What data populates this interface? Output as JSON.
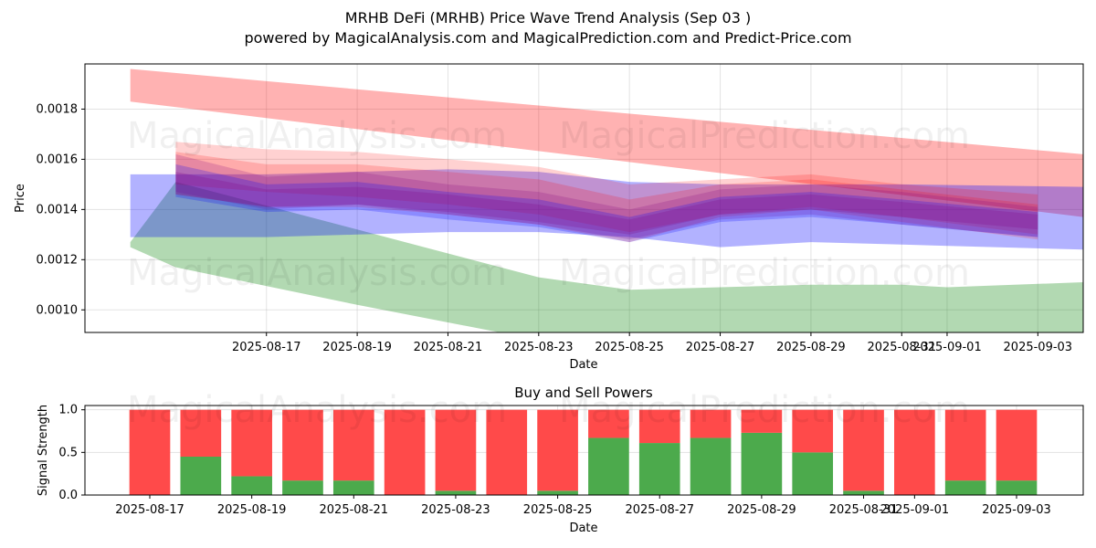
{
  "figure": {
    "title": "MRHB DeFi (MRHB) Price Wave Trend Analysis (Sep 03 )",
    "subtitle": "powered by MagicalAnalysis.com and MagicalPrediction.com and Predict-Price.com",
    "watermarks": [
      "MagicalAnalysis.com",
      "MagicalPrediction.com"
    ]
  },
  "chart_data": [
    {
      "type": "area",
      "title": "",
      "xlabel": "Date",
      "ylabel": "Price",
      "xlim": [
        "2025-08-13",
        "2025-09-04"
      ],
      "ylim": [
        0.00091,
        0.00198
      ],
      "x_ticks": [
        "2025-08-17",
        "2025-08-19",
        "2025-08-21",
        "2025-08-23",
        "2025-08-25",
        "2025-08-27",
        "2025-08-29",
        "2025-08-31",
        "2025-09-01",
        "2025-09-03"
      ],
      "y_ticks": [
        "0.0010",
        "0.0012",
        "0.0014",
        "0.0016",
        "0.0018"
      ],
      "grid": true,
      "colors": {
        "red": "#ff0000",
        "green": "#008000",
        "blue": "#0000ff",
        "purple": "#800080"
      },
      "bands": [
        {
          "color": "red",
          "opacity": 0.3,
          "x": [
            "2025-08-14",
            "2025-09-04"
          ],
          "upper": [
            0.00196,
            0.00162
          ],
          "lower": [
            0.00183,
            0.00137
          ]
        },
        {
          "color": "green",
          "opacity": 0.3,
          "x": [
            "2025-08-14",
            "2025-08-15",
            "2025-08-19",
            "2025-08-23",
            "2025-08-25",
            "2025-08-27",
            "2025-08-29",
            "2025-08-31",
            "2025-09-01",
            "2025-09-04"
          ],
          "upper": [
            0.00127,
            0.00151,
            0.00132,
            0.00113,
            0.00108,
            0.00109,
            0.0011,
            0.0011,
            0.00109,
            0.00111
          ],
          "lower": [
            0.00125,
            0.00117,
            0.00102,
            0.00088,
            0.00085,
            0.00085,
            0.00085,
            0.00085,
            0.00085,
            0.00085
          ]
        },
        {
          "color": "blue",
          "opacity": 0.3,
          "x": [
            "2025-08-14",
            "2025-08-17",
            "2025-08-19",
            "2025-08-21",
            "2025-08-23",
            "2025-08-25",
            "2025-08-27",
            "2025-08-29",
            "2025-08-31",
            "2025-09-04"
          ],
          "upper": [
            0.00154,
            0.00154,
            0.00155,
            0.00156,
            0.00155,
            0.00151,
            0.0015,
            0.0015,
            0.0015,
            0.00149
          ],
          "lower": [
            0.00129,
            0.00129,
            0.0013,
            0.00131,
            0.00131,
            0.00129,
            0.00125,
            0.00127,
            0.00126,
            0.00124
          ]
        },
        {
          "color": "red",
          "opacity": 0.18,
          "x": [
            "2025-08-15",
            "2025-08-17",
            "2025-08-19",
            "2025-08-21",
            "2025-08-23",
            "2025-08-25",
            "2025-08-27",
            "2025-08-29",
            "2025-08-31",
            "2025-09-03"
          ],
          "upper": [
            0.00167,
            0.00164,
            0.00163,
            0.0016,
            0.00157,
            0.0015,
            0.00152,
            0.00154,
            0.0015,
            0.00146
          ],
          "lower": [
            0.0015,
            0.00147,
            0.00145,
            0.00142,
            0.00138,
            0.00131,
            0.00138,
            0.00141,
            0.00137,
            0.0013
          ]
        },
        {
          "color": "red",
          "opacity": 0.18,
          "x": [
            "2025-08-15",
            "2025-08-17",
            "2025-08-19",
            "2025-08-21",
            "2025-08-23",
            "2025-08-25",
            "2025-08-27",
            "2025-08-29",
            "2025-08-31",
            "2025-09-03"
          ],
          "upper": [
            0.00163,
            0.00158,
            0.00158,
            0.00155,
            0.00152,
            0.00144,
            0.0015,
            0.00152,
            0.00148,
            0.00142
          ],
          "lower": [
            0.00146,
            0.00141,
            0.00141,
            0.00138,
            0.00134,
            0.00127,
            0.00137,
            0.0014,
            0.00135,
            0.00128
          ]
        },
        {
          "color": "purple",
          "opacity": 0.2,
          "x": [
            "2025-08-15",
            "2025-08-17",
            "2025-08-19",
            "2025-08-21",
            "2025-08-23",
            "2025-08-25",
            "2025-08-27",
            "2025-08-29",
            "2025-08-31",
            "2025-09-03"
          ],
          "upper": [
            0.00162,
            0.00153,
            0.00155,
            0.0015,
            0.00147,
            0.0014,
            0.00148,
            0.0015,
            0.00147,
            0.00141
          ],
          "lower": [
            0.00147,
            0.0014,
            0.00142,
            0.00138,
            0.00134,
            0.00128,
            0.00136,
            0.00138,
            0.00134,
            0.00129
          ]
        },
        {
          "color": "blue",
          "opacity": 0.22,
          "x": [
            "2025-08-15",
            "2025-08-17",
            "2025-08-19",
            "2025-08-21",
            "2025-08-23",
            "2025-08-25",
            "2025-08-27",
            "2025-08-29",
            "2025-08-31",
            "2025-09-03"
          ],
          "upper": [
            0.00158,
            0.0015,
            0.00151,
            0.00147,
            0.00144,
            0.00137,
            0.00145,
            0.00147,
            0.00144,
            0.00139
          ],
          "lower": [
            0.00145,
            0.00139,
            0.0014,
            0.00136,
            0.00133,
            0.00127,
            0.00135,
            0.00137,
            0.00134,
            0.00129
          ]
        },
        {
          "color": "purple",
          "opacity": 0.22,
          "x": [
            "2025-08-15",
            "2025-08-17",
            "2025-08-19",
            "2025-08-21",
            "2025-08-23",
            "2025-08-25",
            "2025-08-27",
            "2025-08-29",
            "2025-08-31",
            "2025-09-03"
          ],
          "upper": [
            0.00155,
            0.00148,
            0.00149,
            0.00146,
            0.00142,
            0.00136,
            0.00144,
            0.00146,
            0.00143,
            0.00138
          ],
          "lower": [
            0.00146,
            0.00141,
            0.00142,
            0.00139,
            0.00135,
            0.0013,
            0.00138,
            0.0014,
            0.00137,
            0.00132
          ]
        }
      ]
    },
    {
      "type": "bar",
      "title": "Buy and Sell Powers",
      "xlabel": "Date",
      "ylabel": "Signal Strength",
      "ylim": [
        0,
        1.05
      ],
      "y_ticks": [
        "0.0",
        "0.5",
        "1.0"
      ],
      "x_ticks": [
        "2025-08-17",
        "2025-08-19",
        "2025-08-21",
        "2025-08-23",
        "2025-08-25",
        "2025-08-27",
        "2025-08-29",
        "2025-08-31",
        "2025-09-01",
        "2025-09-03"
      ],
      "stacked": true,
      "colors": {
        "buy": "#4caa4c",
        "sell": "#ff4a4a"
      },
      "categories": [
        "2025-08-17",
        "2025-08-18",
        "2025-08-19",
        "2025-08-20",
        "2025-08-21",
        "2025-08-22",
        "2025-08-23",
        "2025-08-24",
        "2025-08-25",
        "2025-08-26",
        "2025-08-27",
        "2025-08-28",
        "2025-08-29",
        "2025-08-30",
        "2025-08-31",
        "2025-09-01",
        "2025-09-02",
        "2025-09-03"
      ],
      "series": [
        {
          "values": [
            0.0,
            0.45,
            0.22,
            0.17,
            0.17,
            0.0,
            0.05,
            0.0,
            0.05,
            0.67,
            0.61,
            0.67,
            0.73,
            0.5,
            0.05,
            0.0,
            0.17,
            0.17
          ]
        },
        {
          "values": [
            1.0,
            0.55,
            0.78,
            0.83,
            0.83,
            1.0,
            0.95,
            1.0,
            0.95,
            0.33,
            0.39,
            0.33,
            0.27,
            0.5,
            0.95,
            1.0,
            0.83,
            0.83
          ]
        }
      ]
    }
  ]
}
